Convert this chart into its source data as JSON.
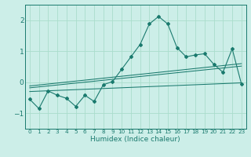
{
  "title": "",
  "xlabel": "Humidex (Indice chaleur)",
  "ylabel": "",
  "bg_color": "#cceee8",
  "line_color": "#1a7a6e",
  "grid_color": "#aaddcc",
  "xlim": [
    -0.5,
    23.5
  ],
  "ylim": [
    -1.5,
    2.5
  ],
  "yticks": [
    -1,
    0,
    1,
    2
  ],
  "xticks": [
    0,
    1,
    2,
    3,
    4,
    5,
    6,
    7,
    8,
    9,
    10,
    11,
    12,
    13,
    14,
    15,
    16,
    17,
    18,
    19,
    20,
    21,
    22,
    23
  ],
  "main_line_x": [
    0,
    1,
    2,
    3,
    4,
    5,
    6,
    7,
    8,
    9,
    10,
    11,
    12,
    13,
    14,
    15,
    16,
    17,
    18,
    19,
    20,
    21,
    22,
    23
  ],
  "main_line_y": [
    -0.55,
    -0.85,
    -0.28,
    -0.42,
    -0.52,
    -0.78,
    -0.42,
    -0.62,
    -0.08,
    0.02,
    0.42,
    0.82,
    1.22,
    1.88,
    2.12,
    1.88,
    1.12,
    0.82,
    0.88,
    0.92,
    0.58,
    0.32,
    1.08,
    -0.05
  ],
  "trend1_x": [
    0,
    23
  ],
  "trend1_y": [
    -0.18,
    0.52
  ],
  "trend2_x": [
    0,
    23
  ],
  "trend2_y": [
    -0.12,
    0.6
  ],
  "trend3_x": [
    0,
    23
  ],
  "trend3_y": [
    -0.3,
    -0.02
  ]
}
